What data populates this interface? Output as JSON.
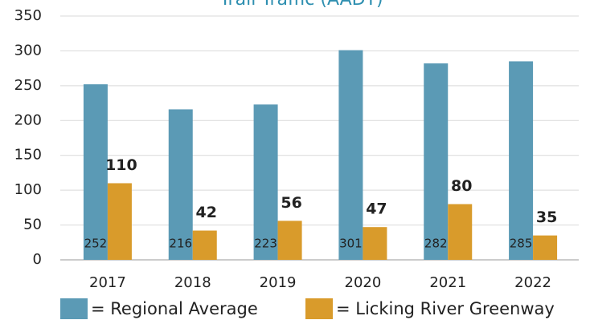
{
  "chart_data": {
    "type": "bar",
    "title": "Trail Traffic (AADT)",
    "categories": [
      "2017",
      "2018",
      "2019",
      "2020",
      "2021",
      "2022"
    ],
    "series": [
      {
        "name": "= Regional Average",
        "color": "#5b9ab5",
        "values": [
          252,
          216,
          223,
          301,
          282,
          285
        ]
      },
      {
        "name": "= Licking River Greenway",
        "color": "#d99b2b",
        "values": [
          110,
          42,
          56,
          47,
          80,
          35
        ]
      }
    ],
    "ylim": [
      0,
      350
    ],
    "yticks": [
      0,
      50,
      100,
      150,
      200,
      250,
      300,
      350
    ],
    "grid": true
  }
}
